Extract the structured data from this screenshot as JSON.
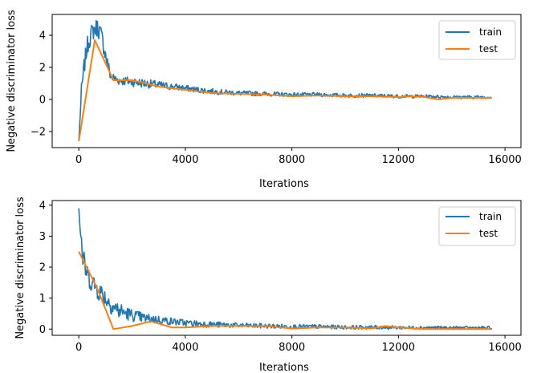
{
  "colors": {
    "train": "#1f77b4",
    "test": "#ff7f0e"
  },
  "chart_data": [
    {
      "type": "line",
      "title": "",
      "xlabel": "Iterations",
      "ylabel": "Negative discriminator loss",
      "xlim": [
        -1000,
        16600
      ],
      "ylim": [
        -3,
        5.3
      ],
      "xticks": [
        0,
        4000,
        8000,
        12000,
        16000
      ],
      "xtick_labels": [
        "0",
        "4000",
        "8000",
        "12000",
        "16000"
      ],
      "yticks": [
        -2,
        0,
        2,
        4
      ],
      "ytick_labels": [
        "−2",
        "0",
        "2",
        "4"
      ],
      "legend": {
        "position": "top-right",
        "entries": [
          "train",
          "test"
        ]
      },
      "series": [
        {
          "name": "train",
          "noisy": true,
          "x": [
            0,
            100,
            200,
            300,
            400,
            500,
            600,
            700,
            800,
            900,
            1000,
            1200,
            1500,
            2000,
            2500,
            3000,
            3500,
            4000,
            5000,
            6000,
            7000,
            8000,
            9000,
            10000,
            11000,
            12000,
            13000,
            14000,
            15000,
            15500
          ],
          "y": [
            -2.6,
            0.5,
            2.0,
            3.2,
            3.8,
            4.2,
            4.4,
            4.5,
            4.2,
            3.6,
            2.8,
            1.4,
            1.2,
            1.1,
            1.0,
            0.9,
            0.8,
            0.7,
            0.5,
            0.4,
            0.35,
            0.3,
            0.3,
            0.25,
            0.25,
            0.2,
            0.2,
            0.15,
            0.15,
            0.15
          ],
          "noise": [
            0,
            0.5,
            0.6,
            0.6,
            0.6,
            0.6,
            0.6,
            0.6,
            0.6,
            0.6,
            0.5,
            0.35,
            0.3,
            0.3,
            0.28,
            0.25,
            0.22,
            0.2,
            0.17,
            0.15,
            0.14,
            0.13,
            0.12,
            0.12,
            0.11,
            0.11,
            0.1,
            0.1,
            0.1,
            0.1
          ]
        },
        {
          "name": "test",
          "x": [
            0,
            600,
            1300,
            2000,
            3000,
            4000,
            5000,
            6000,
            7000,
            8000,
            9000,
            10000,
            11000,
            12000,
            12500,
            13000,
            13500,
            14000,
            15000,
            15500
          ],
          "y": [
            -2.6,
            3.7,
            1.2,
            1.2,
            0.8,
            0.6,
            0.4,
            0.35,
            0.3,
            0.2,
            0.25,
            0.2,
            0.2,
            0.15,
            0.2,
            0.15,
            0.0,
            0.1,
            0.1,
            0.1
          ]
        }
      ]
    },
    {
      "type": "line",
      "title": "",
      "xlabel": "Iterations",
      "ylabel": "Negative discriminator loss",
      "xlim": [
        -1000,
        16600
      ],
      "ylim": [
        -0.2,
        4.15
      ],
      "xticks": [
        0,
        4000,
        8000,
        12000,
        16000
      ],
      "xtick_labels": [
        "0",
        "4000",
        "8000",
        "12000",
        "16000"
      ],
      "yticks": [
        0,
        1,
        2,
        3,
        4
      ],
      "ytick_labels": [
        "0",
        "1",
        "2",
        "3",
        "4"
      ],
      "legend": {
        "position": "top-right",
        "entries": [
          "train",
          "test"
        ]
      },
      "series": [
        {
          "name": "train",
          "noisy": true,
          "x": [
            0,
            50,
            150,
            300,
            500,
            700,
            900,
            1200,
            1500,
            2000,
            2500,
            3000,
            3500,
            4000,
            5000,
            6000,
            7000,
            8000,
            9000,
            10000,
            11000,
            12000,
            13000,
            14000,
            15000,
            15500
          ],
          "y": [
            3.9,
            3.3,
            2.3,
            1.8,
            1.5,
            1.3,
            1.1,
            0.8,
            0.6,
            0.45,
            0.35,
            0.3,
            0.25,
            0.2,
            0.15,
            0.12,
            0.1,
            0.08,
            0.08,
            0.06,
            0.06,
            0.05,
            0.05,
            0.04,
            0.04,
            0.04
          ],
          "noise": [
            0.1,
            0.4,
            0.4,
            0.35,
            0.35,
            0.35,
            0.35,
            0.3,
            0.28,
            0.2,
            0.16,
            0.14,
            0.12,
            0.11,
            0.1,
            0.08,
            0.08,
            0.07,
            0.07,
            0.06,
            0.06,
            0.06,
            0.05,
            0.05,
            0.05,
            0.05
          ]
        },
        {
          "name": "test",
          "x": [
            0,
            700,
            1300,
            2000,
            2700,
            3500,
            4000,
            5000,
            6000,
            7000,
            8000,
            9000,
            10000,
            11000,
            11500,
            12000,
            13000,
            14000,
            15000,
            15500
          ],
          "y": [
            2.5,
            1.3,
            0.0,
            0.1,
            0.25,
            0.05,
            0.05,
            0.1,
            0.1,
            0.1,
            0.02,
            0.05,
            0.05,
            0.02,
            0.1,
            0.05,
            0.0,
            0.0,
            0.0,
            0.0
          ]
        }
      ]
    }
  ]
}
